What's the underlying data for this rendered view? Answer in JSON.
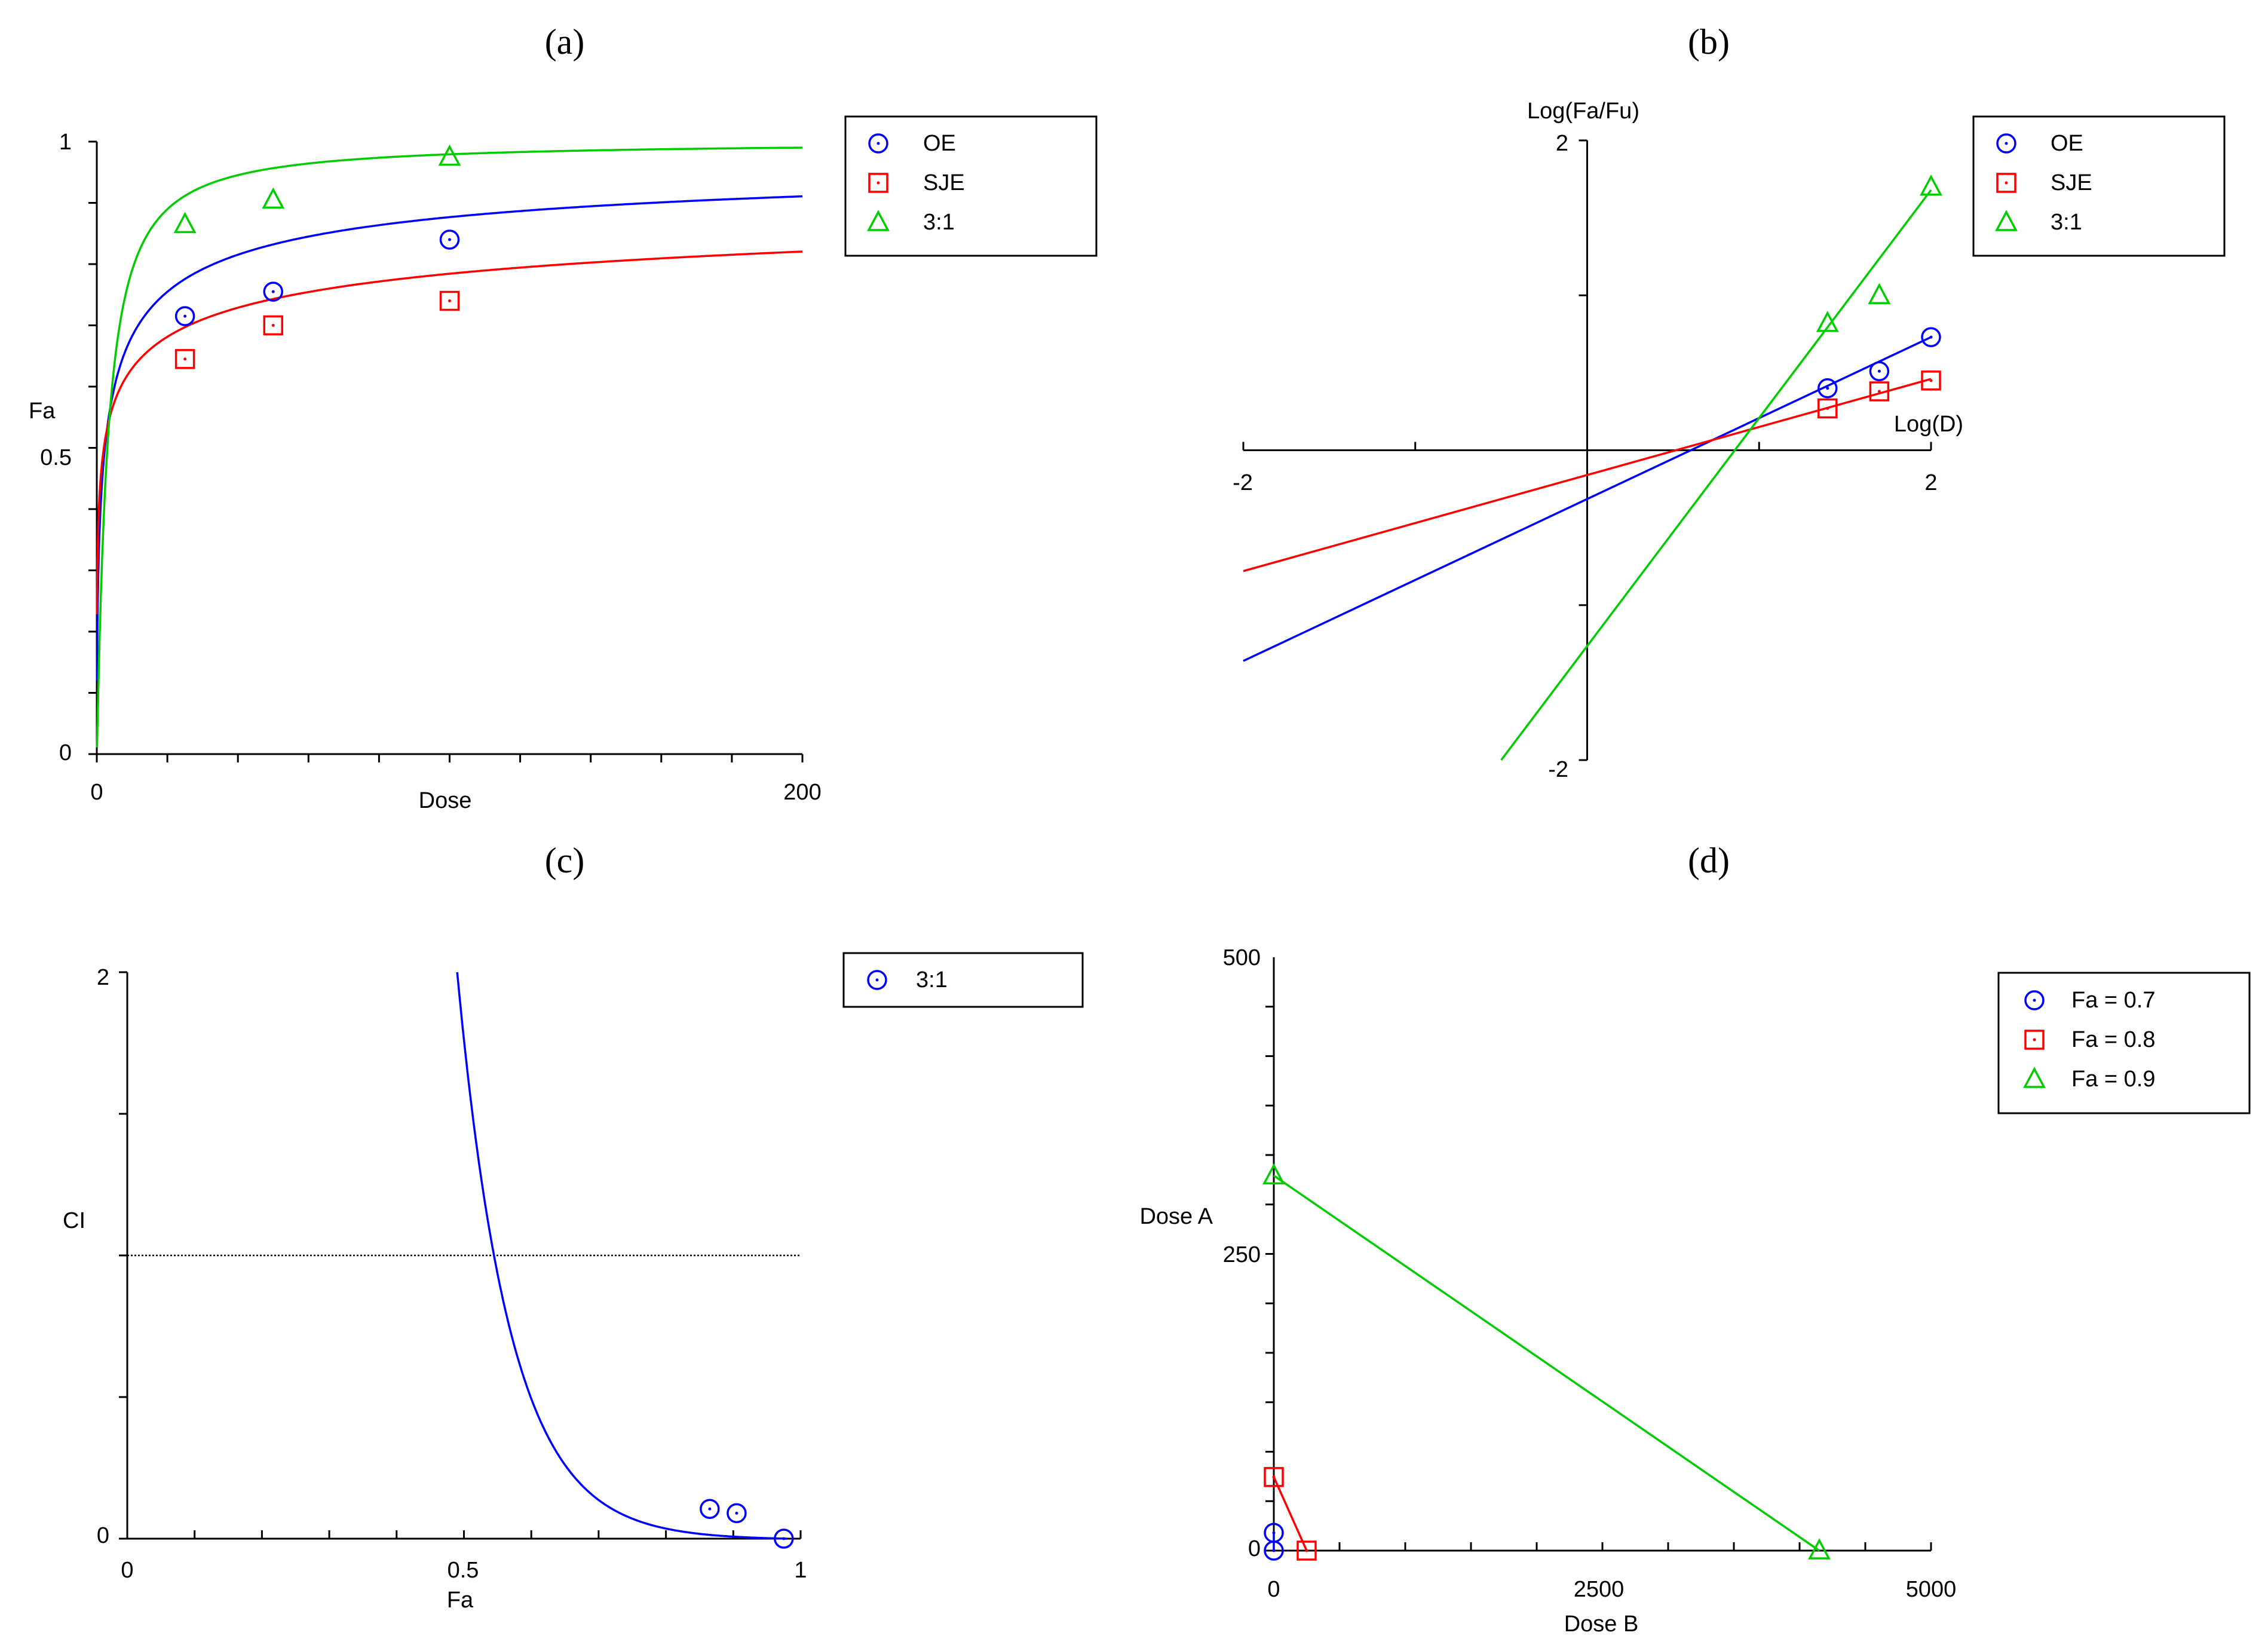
{
  "chart_data": [
    {
      "panel": "(a)",
      "type": "line",
      "title": "",
      "xlabel": "Dose",
      "ylabel": "Fa",
      "xlim": [
        0,
        200
      ],
      "ylim": [
        0,
        1
      ],
      "x_tick_labels": [
        "0",
        "200"
      ],
      "y_tick_labels": [
        "0",
        "0.5",
        "1"
      ],
      "series": [
        {
          "name": "OE",
          "color": "#0000ff",
          "marker": "circle",
          "points_x": [
            25,
            50,
            100
          ],
          "points_y": [
            0.715,
            0.755,
            0.84
          ],
          "curve": {
            "dm": 2.3,
            "m": 0.52
          }
        },
        {
          "name": "SJE",
          "color": "#ff0000",
          "marker": "square",
          "points_x": [
            25,
            50,
            100
          ],
          "points_y": [
            0.645,
            0.7,
            0.74
          ],
          "curve": {
            "dm": 2.0,
            "m": 0.33
          }
        },
        {
          "name": "3:1",
          "color": "#00cc00",
          "marker": "triangle",
          "points_x": [
            25,
            50,
            100
          ],
          "points_y": [
            0.865,
            0.905,
            0.975
          ],
          "curve": {
            "dm": 3.0,
            "m": 1.1
          }
        }
      ],
      "legend": [
        "OE",
        "SJE",
        "3:1"
      ]
    },
    {
      "panel": "(b)",
      "type": "line",
      "title": "",
      "xlabel": "Log(D)",
      "ylabel": "Log(Fa/Fu)",
      "xlim": [
        -2,
        2
      ],
      "ylim": [
        -2,
        2
      ],
      "x_tick_labels": [
        "-2",
        "2"
      ],
      "y_tick_labels": [
        "-2",
        "2"
      ],
      "series": [
        {
          "name": "OE",
          "color": "#0000ff",
          "marker": "circle",
          "points_x": [
            1.398,
            1.699,
            2.0
          ],
          "points_y": [
            0.4,
            0.51,
            0.73
          ],
          "line": [
            [
              -2,
              -1.36
            ],
            [
              2,
              0.73
            ]
          ]
        },
        {
          "name": "SJE",
          "color": "#ff0000",
          "marker": "square",
          "points_x": [
            1.398,
            1.699,
            2.0
          ],
          "points_y": [
            0.27,
            0.38,
            0.45
          ],
          "line": [
            [
              -2,
              -0.78
            ],
            [
              2,
              0.46
            ]
          ]
        },
        {
          "name": "3:1",
          "color": "#00cc00",
          "marker": "triangle",
          "points_x": [
            1.398,
            1.699,
            2.0
          ],
          "points_y": [
            0.82,
            1.0,
            1.7
          ],
          "line": [
            [
              -0.5,
              -2.0
            ],
            [
              2,
              1.68
            ]
          ]
        }
      ],
      "legend": [
        "OE",
        "SJE",
        "3:1"
      ]
    },
    {
      "panel": "(c)",
      "type": "line",
      "title": "",
      "xlabel": "Fa",
      "ylabel": "CI",
      "xlim": [
        0,
        1
      ],
      "ylim": [
        0,
        2
      ],
      "x_tick_labels": [
        "0",
        "0.5",
        "1"
      ],
      "y_tick_labels": [
        "0",
        "2"
      ],
      "reference_line_y": 1,
      "series": [
        {
          "name": "3:1",
          "color": "#0000ff",
          "marker": "circle",
          "points_x": [
            0.865,
            0.905,
            0.975
          ],
          "points_y": [
            0.105,
            0.09,
            0.0
          ],
          "curve": {
            "x_start": 0.49,
            "x_end": 0.98,
            "y_start": 2.0,
            "y_end": 0.0
          }
        }
      ],
      "legend": [
        "3:1"
      ]
    },
    {
      "panel": "(d)",
      "type": "line",
      "title": "",
      "xlabel": "Dose B",
      "ylabel": "Dose A",
      "xlim": [
        0,
        5000
      ],
      "ylim": [
        0,
        500
      ],
      "x_tick_labels": [
        "0",
        "2500",
        "5000"
      ],
      "y_tick_labels": [
        "0",
        "250",
        "500"
      ],
      "series": [
        {
          "name": "Fa = 0.7",
          "color": "#0000ff",
          "marker": "circle",
          "points_x": [
            0,
            0
          ],
          "points_y": [
            15,
            0
          ]
        },
        {
          "name": "Fa = 0.8",
          "color": "#ff0000",
          "marker": "square",
          "points_x": [
            0,
            250
          ],
          "points_y": [
            62,
            0
          ]
        },
        {
          "name": "Fa = 0.9",
          "color": "#00cc00",
          "marker": "triangle",
          "points_x": [
            0,
            4150
          ],
          "points_y": [
            316,
            0
          ]
        }
      ],
      "legend": [
        "Fa = 0.7",
        "Fa = 0.8",
        "Fa = 0.9"
      ]
    }
  ]
}
